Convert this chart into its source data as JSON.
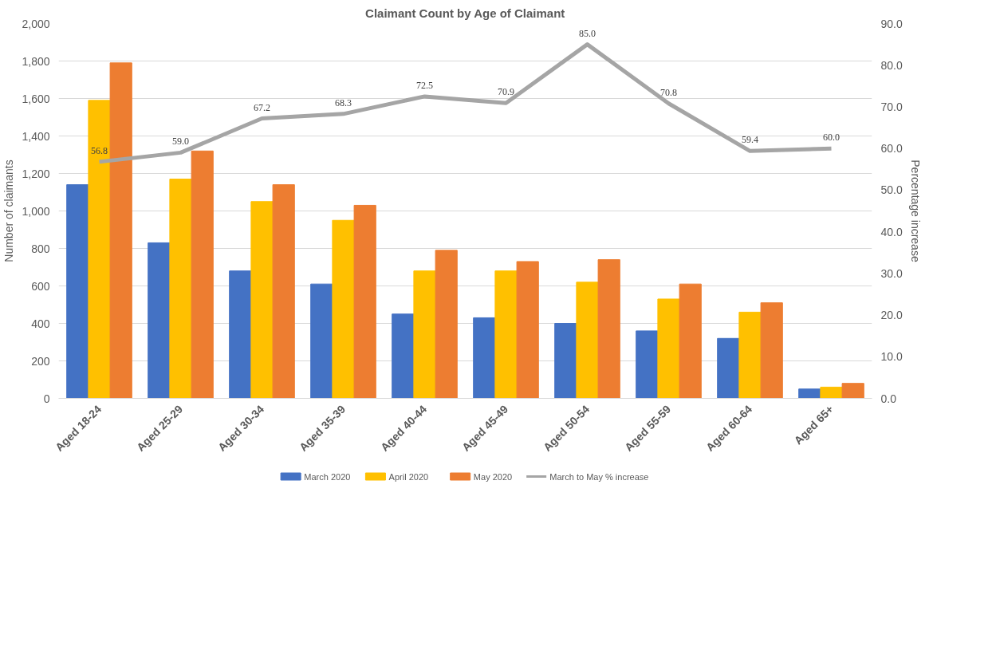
{
  "chart_data": {
    "type": "bar",
    "title": "Claimant Count by Age of Claimant",
    "ylabel": "Number of claimants",
    "y2label": "Percentage increase",
    "categories": [
      "Aged 18-24",
      "Aged 25-29",
      "Aged 30-34",
      "Aged 35-39",
      "Aged 40-44",
      "Aged 45-49",
      "Aged 50-54",
      "Aged 55-59",
      "Aged 60-64",
      "Aged 65+"
    ],
    "series": [
      {
        "name": "March 2020",
        "color": "#4472c4",
        "values": [
          1140,
          830,
          680,
          610,
          450,
          430,
          400,
          360,
          320,
          50
        ]
      },
      {
        "name": "April 2020",
        "color": "#ffc000",
        "values": [
          1590,
          1170,
          1050,
          950,
          680,
          680,
          620,
          530,
          460,
          60
        ]
      },
      {
        "name": "May 2020",
        "color": "#ed7d31",
        "values": [
          1790,
          1320,
          1140,
          1030,
          790,
          730,
          740,
          610,
          510,
          80
        ]
      },
      {
        "name": "March to May % increase",
        "type": "line",
        "axis": "y2",
        "color": "#a5a5a5",
        "value_labels": [
          "56.8",
          "59.0",
          "67.2",
          "68.3",
          "72.5",
          "70.9",
          "85.0",
          "70.8",
          "59.4",
          "60.0"
        ],
        "values": [
          56.8,
          59.0,
          67.2,
          68.3,
          72.5,
          70.9,
          85.0,
          70.8,
          59.4,
          60.0
        ]
      }
    ],
    "ylim": [
      0,
      2000
    ],
    "yticks": [
      {
        "value": 0,
        "label": "0"
      },
      {
        "value": 200,
        "label": "200"
      },
      {
        "value": 400,
        "label": "400"
      },
      {
        "value": 600,
        "label": "600"
      },
      {
        "value": 800,
        "label": "800"
      },
      {
        "value": 1000,
        "label": "1,000"
      },
      {
        "value": 1200,
        "label": "1,200"
      },
      {
        "value": 1400,
        "label": "1,400"
      },
      {
        "value": 1600,
        "label": "1,600"
      },
      {
        "value": 1800,
        "label": "1,800"
      },
      {
        "value": 2000,
        "label": "2,000"
      }
    ],
    "y2lim": [
      0,
      90
    ],
    "y2ticks": [
      {
        "value": 0,
        "label": "0.0"
      },
      {
        "value": 10,
        "label": "10.0"
      },
      {
        "value": 20,
        "label": "20.0"
      },
      {
        "value": 30,
        "label": "30.0"
      },
      {
        "value": 40,
        "label": "40.0"
      },
      {
        "value": 50,
        "label": "50.0"
      },
      {
        "value": 60,
        "label": "60.0"
      },
      {
        "value": 70,
        "label": "70.0"
      },
      {
        "value": 80,
        "label": "80.0"
      },
      {
        "value": 90,
        "label": "90.0"
      }
    ],
    "grid": "y",
    "legend": "bottom"
  }
}
